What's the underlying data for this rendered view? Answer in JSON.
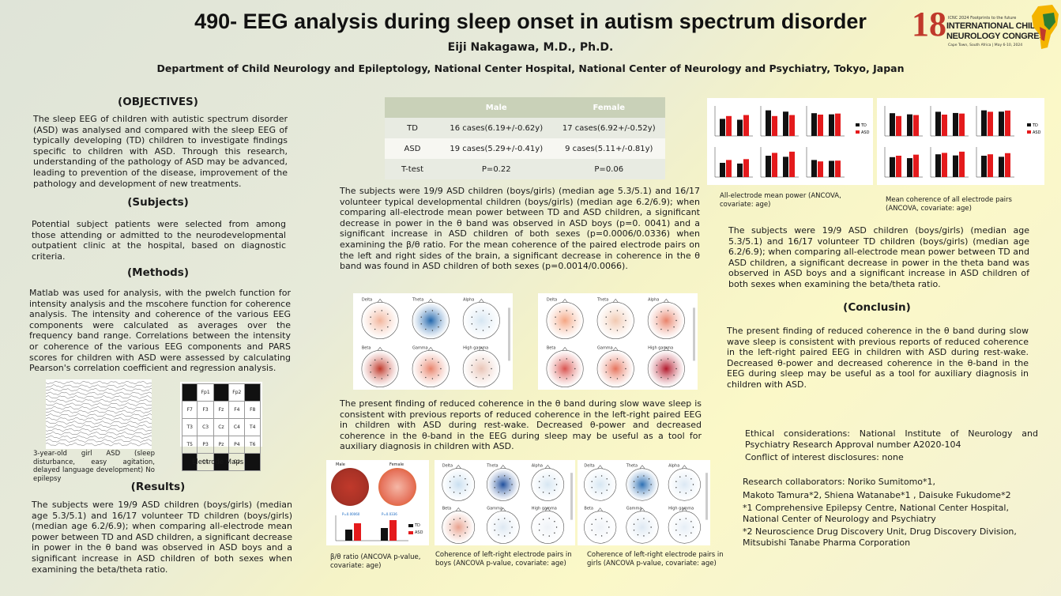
{
  "header": {
    "title": "490- EEG analysis during sleep onset in autism spectrum disorder",
    "author": "Eiji Nakagawa, M.D., Ph.D.",
    "department": "Department of Child Neurology and Epileptology, National Center Hospital, National Center of Neurology and Psychiatry, Tokyo, Japan",
    "logo": {
      "number": "18",
      "tagline": "ICNC 2024 Footprints to the future",
      "line1": "INTERNATIONAL CHILD",
      "line2": "NEUROLOGY CONGRESS",
      "location": "Cape Town, South Africa | May 6-10, 2024"
    }
  },
  "objectives": {
    "heading": "(OBJECTIVES)",
    "text": "The sleep EEG of children with autistic spectrum disorder (ASD) was analysed and compared with the sleep EEG of typically developing (TD) children to investigate findings specific to children with ASD. Through this research, understanding of the pathology of ASD may be advanced, leading to prevention of the disease, improvement of the pathology and development of new treatments."
  },
  "subjects": {
    "heading": "(Subjects)",
    "text": "Potential subject patients were selected from among those attending or admitted to the neurodevelopmental outpatient clinic at the hospital, based on diagnostic criteria."
  },
  "methods": {
    "heading": "(Methods)",
    "text": "Matlab was used for analysis, with the pwelch function for intensity analysis and the mscohere function for coherence analysis. The intensity and coherence of the various EEG components were calculated as averages over the frequency band range. Correlations between the intensity or coherence of the various EEG components and PARS scores for children with ASD were assessed by calculating Pearson's correlation coefficient and regression analysis.",
    "eeg_caption": "3-year-old girl ASD (sleep disturbance, easy agitation, delayed language development) No epilepsy",
    "electrode_caption": "Electrode Maps",
    "electrodes": [
      [
        "",
        "Fp1",
        "",
        "Fp2",
        ""
      ],
      [
        "F7",
        "F3",
        "Fz",
        "F4",
        "F8"
      ],
      [
        "T3",
        "C3",
        "Cz",
        "C4",
        "T4"
      ],
      [
        "T5",
        "P3",
        "Pz",
        "P4",
        "T6"
      ],
      [
        "",
        "O1",
        "",
        "O2",
        ""
      ]
    ]
  },
  "results": {
    "heading": "(Results)",
    "text": "The subjects were 19/9 ASD children (boys/girls) (median age 5.3/5.1) and 16/17 volunteer TD children (boys/girls) (median age 6.2/6.9); when comparing all-electrode mean power between TD and ASD children, a significant decrease in power in the θ band was observed in ASD boys and a significant increase in ASD children of both sexes when examining the beta/theta ratio."
  },
  "table": {
    "headers": [
      "",
      "Male",
      "Female"
    ],
    "rows": [
      [
        "TD",
        "16 cases(6.19+/-0.62y)",
        "17 cases(6.92+/-0.52y)"
      ],
      [
        "ASD",
        "19 cases(5.29+/-0.41y)",
        "9 cases(5.11+/-0.81y)"
      ],
      [
        "T-test",
        "P=0.22",
        "P=0.06"
      ]
    ]
  },
  "middle": {
    "text1": "The subjects were 19/9 ASD children (boys/girls) (median age 5.3/5.1) and 16/17 volunteer typical developmental children (boys/girls) (median age 6.2/6.9); when comparing all-electrode mean power between TD and ASD children, a significant decrease in power in the θ band was observed in ASD boys (p=0. 0041) and a significant increase in ASD children of both sexes (p=0.0006/0.0336) when examining the β/θ ratio. For the mean coherence of the paired electrode pairs on the left and right sides of the brain, a significant decrease in coherence in the θ band was found in ASD children of both sexes (p=0.0014/0.0066).",
    "text2": "The present finding of reduced coherence in the θ band during slow wave sleep is consistent with previous reports of reduced coherence in the left-right paired EEG in children with ASD during rest-wake. Decreased θ-power and decreased coherence in the θ-band in the EEG during sleep may be useful as a tool for auxiliary diagnosis in children with ASD.",
    "topo_bands": [
      "Delta",
      "Theta",
      "Alpha",
      "Beta",
      "Gamma",
      "High gamma"
    ],
    "ratio_caption": "β/θ ratio (ANCOVA p-value, covariate: age)",
    "boys_caption": "Coherence of left-right electrode pairs in boys (ANCOVA p-value, covariate: age)",
    "girls_caption": "Coherence of left-right electrode pairs in girls (ANCOVA p-value, covariate: age)",
    "ratio_labels": {
      "male": "Male",
      "female": "Female",
      "p1": "P=0.00060",
      "p2": "P=0.0336",
      "td": "TD",
      "asd": "ASD"
    }
  },
  "right": {
    "power_caption": "All-electrode mean power (ANCOVA, covariate: age)",
    "coherence_caption": "Mean coherence of all electrode pairs (ANCOVA, covariate: age)",
    "text": "The subjects were 19/9 ASD children (boys/girls) (median age 5.3/5.1) and 16/17 volunteer TD children (boys/girls) (median age 6.2/6.9); when comparing all-electrode mean power between TD and ASD children, a significant decrease in power in the theta band was observed in ASD boys and a significant increase in ASD children of both sexes when examining the beta/theta ratio.",
    "conclusion_heading": "(Conclusin)",
    "conclusion_text": "The present finding of reduced coherence in the θ band during slow wave sleep is consistent with previous reports of reduced coherence in the left-right paired EEG in children with ASD during rest-wake. Decreased θ-power and decreased coherence in the θ-band in the EEG during sleep may be useful as a tool for auxiliary diagnosis in children with ASD.",
    "ethics": "Ethical considerations: National Institute of Neurology and Psychiatry Research Approval number A2020-104",
    "conflict": "Conflict of interest disclosures: none",
    "collab1": "Research collaborators: Noriko Sumitomo*1,",
    "collab2": "Makoto Tamura*2, Shiena Watanabe*1 , Daisuke Fukudome*2",
    "affil1": "*1 Comprehensive Epilepsy Centre, National Center Hospital, National Center of Neurology and Psychiatry",
    "affil2": "*2 Neuroscience Drug Discovery Unit, Drug Discovery Division, Mitsubishi Tanabe Pharma Corporation",
    "legend": {
      "td": "TD",
      "asd": "ASD"
    }
  },
  "colors": {
    "td": "#111111",
    "asd": "#e41a1c",
    "table_header": "#c9d1b8"
  }
}
